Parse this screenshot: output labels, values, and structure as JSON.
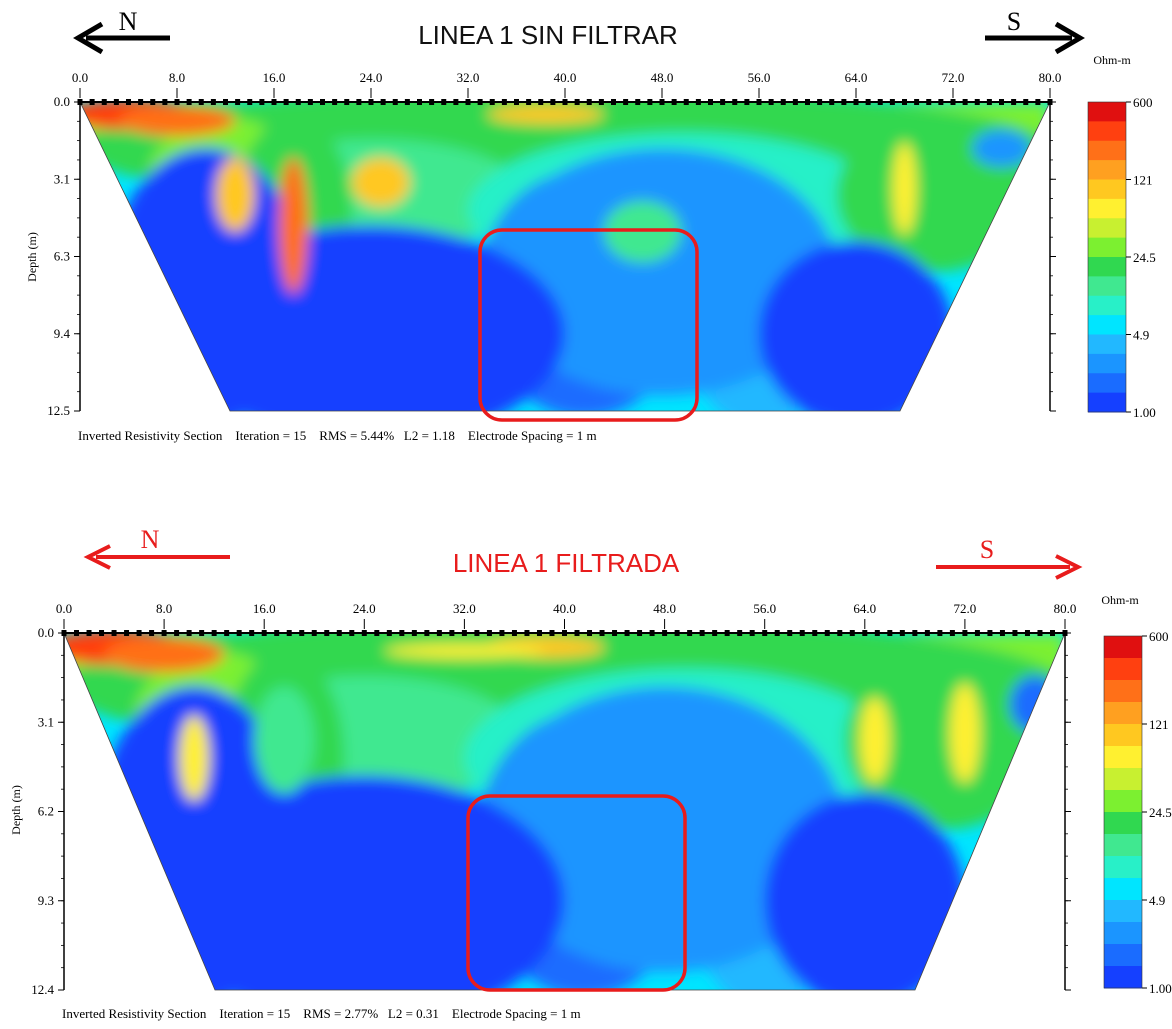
{
  "colors": {
    "scale": [
      "#1540ff",
      "#1a6cff",
      "#1b95ff",
      "#22b8ff",
      "#00e5ff",
      "#28f0c8",
      "#40e890",
      "#30d850",
      "#7cf030",
      "#c8f030",
      "#fff030",
      "#ffc820",
      "#ffa020",
      "#ff7018",
      "#ff4010",
      "#e01010"
    ],
    "highlight": "#e81c1c",
    "arrow_top": "#000000",
    "arrow_bottom": "#e81c1c"
  },
  "panels": [
    {
      "title": "LINEA 1 SIN FILTRAR",
      "title_color": "#111111",
      "arrow_color": "#000000",
      "north_label": "N",
      "south_label": "S",
      "unit_label": "Ohm-m",
      "depth_axis_label": "Depth (m)",
      "footer": "Inverted Resistivity Section    Iteration = 15    RMS = 5.44%   L2 = 1.18    Electrode Spacing = 1 m",
      "chart_data": {
        "type": "heatmap",
        "x_ticks": [
          "0.0",
          "8.0",
          "16.0",
          "24.0",
          "32.0",
          "40.0",
          "48.0",
          "56.0",
          "64.0",
          "72.0",
          "80.0"
        ],
        "y_ticks": [
          "0.0",
          "3.1",
          "6.3",
          "9.4",
          "12.5"
        ],
        "colorbar_labels": [
          "600",
          "121",
          "24.5",
          "4.9",
          "1.00"
        ],
        "xlim": [
          0,
          80
        ],
        "ylim": [
          0,
          12.5
        ]
      }
    },
    {
      "title": "LINEA 1 FILTRADA",
      "title_color": "#e81c1c",
      "arrow_color": "#e81c1c",
      "north_label": "N",
      "south_label": "S",
      "unit_label": "Ohm-m",
      "depth_axis_label": "Depth (m)",
      "footer": "Inverted Resistivity Section    Iteration = 15    RMS = 2.77%   L2 = 0.31    Electrode Spacing = 1 m",
      "chart_data": {
        "type": "heatmap",
        "x_ticks": [
          "0.0",
          "8.0",
          "16.0",
          "24.0",
          "32.0",
          "40.0",
          "48.0",
          "56.0",
          "64.0",
          "72.0",
          "80.0"
        ],
        "y_ticks": [
          "0.0",
          "3.1",
          "6.2",
          "9.3",
          "12.4"
        ],
        "colorbar_labels": [
          "600",
          "121",
          "24.5",
          "4.9",
          "1.00"
        ],
        "xlim": [
          0,
          80
        ],
        "ylim": [
          0,
          12.4
        ]
      }
    }
  ]
}
